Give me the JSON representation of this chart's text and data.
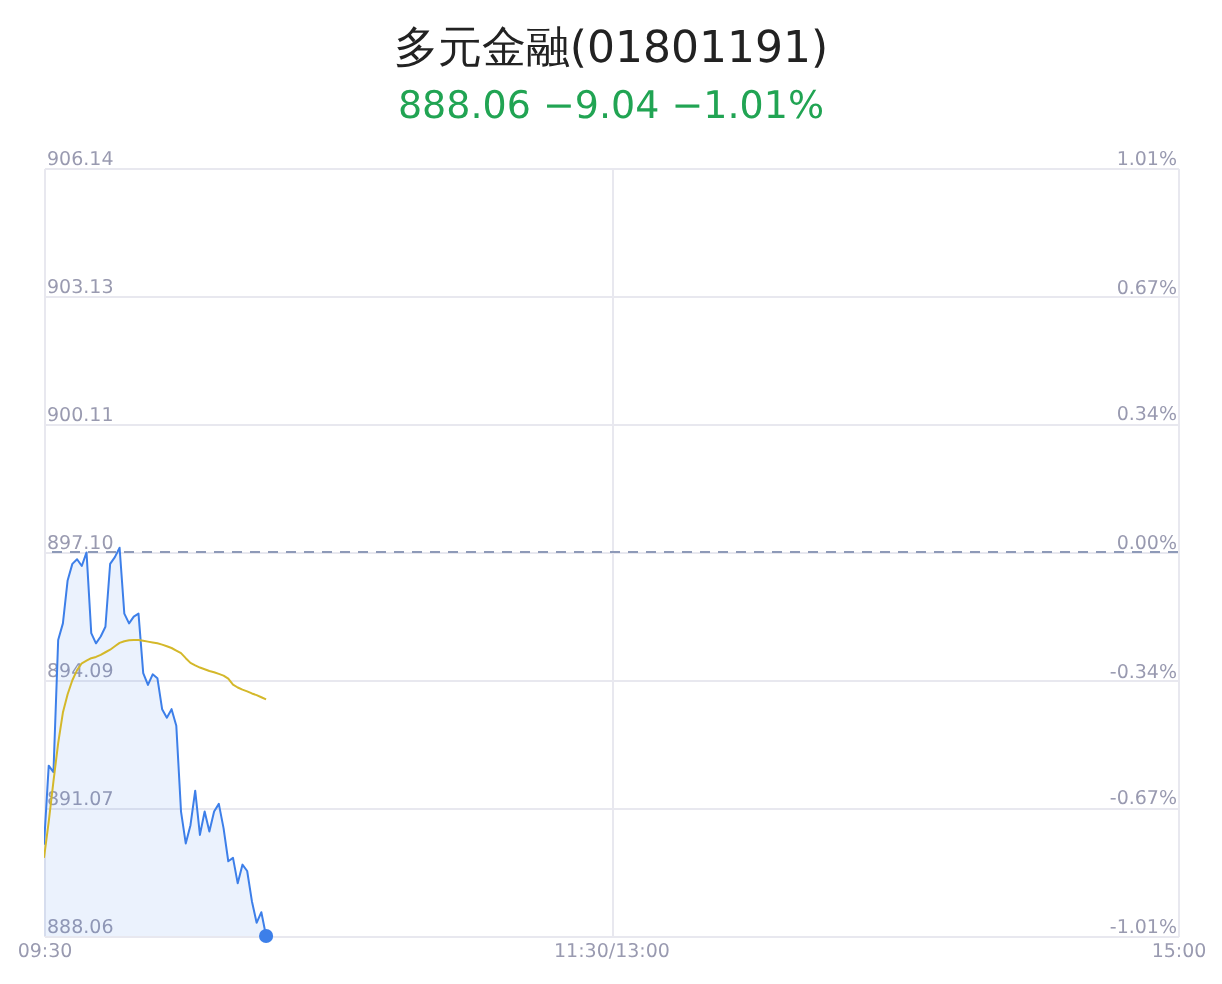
{
  "chart_data": {
    "type": "area",
    "title": "多元金融(01801191)",
    "subtitle": "888.06 −9.04 −1.01%",
    "categories": [
      "09:30",
      null,
      null,
      null,
      null,
      null,
      null,
      null,
      null,
      null,
      null,
      null,
      null,
      null,
      null,
      null,
      null,
      null,
      null,
      null,
      null,
      null,
      null,
      null,
      null,
      null,
      null,
      null,
      null,
      null,
      null,
      null,
      null,
      null,
      null,
      null,
      null,
      null,
      null,
      null,
      null,
      null,
      null,
      null,
      null,
      null,
      null,
      null,
      null,
      null,
      null,
      null,
      null,
      null,
      null,
      null,
      null,
      null,
      null,
      null,
      null,
      null,
      null,
      null,
      null,
      null,
      null,
      null,
      null,
      null,
      null,
      null,
      null,
      null,
      null,
      null,
      null,
      null,
      null,
      null,
      null,
      null,
      null,
      null,
      null,
      null,
      null,
      null,
      null,
      null,
      null,
      null,
      null,
      null,
      null,
      null,
      null,
      null,
      null,
      null,
      null,
      null,
      null,
      null,
      null,
      null,
      null,
      null,
      null,
      null,
      null,
      null,
      null,
      null,
      null,
      null,
      null,
      null,
      null,
      null,
      "11:30/13:00",
      null,
      null,
      null,
      null,
      null,
      null,
      null,
      null,
      null,
      null,
      null,
      null,
      null,
      null,
      null,
      null,
      null,
      null,
      null,
      null,
      null,
      null,
      null,
      null,
      null,
      null,
      null,
      null,
      null,
      null,
      null,
      null,
      null,
      null,
      null,
      null,
      null,
      null,
      null,
      null,
      null,
      null,
      null,
      null,
      null,
      null,
      null,
      null,
      null,
      null,
      null,
      null,
      null,
      null,
      null,
      null,
      null,
      null,
      null,
      null,
      null,
      null,
      null,
      null,
      null,
      null,
      null,
      null,
      null,
      null,
      null,
      null,
      null,
      null,
      null,
      null,
      null,
      null,
      null,
      null,
      null,
      null,
      null,
      null,
      null,
      null,
      null,
      null,
      null,
      null,
      null,
      null,
      null,
      null,
      null,
      null,
      null,
      null,
      null,
      null,
      null,
      null,
      null,
      null,
      null,
      null,
      null,
      null,
      null,
      null,
      null,
      null,
      null,
      null,
      null,
      null,
      null,
      null,
      null,
      "15:00"
    ],
    "ylim": [
      888.06,
      906.14
    ],
    "yticks": [
      888.06,
      891.07,
      894.09,
      {
        "value": 897.1,
        "label": "897.10"
      },
      900.11,
      903.13,
      906.14
    ],
    "y2lim": [
      -1.01,
      1.01
    ],
    "y2ticks": [
      {
        "value": -1.01,
        "label": "-1.01%"
      },
      {
        "value": -0.67,
        "label": "-0.67%"
      },
      {
        "value": -0.34,
        "label": "-0.34%"
      },
      {
        "value": 0,
        "label": "0.00%"
      },
      {
        "value": 0.34,
        "label": "0.34%"
      },
      {
        "value": 0.67,
        "label": "0.67%"
      },
      {
        "value": 1.01,
        "label": "1.01%"
      }
    ],
    "grid": true,
    "ref_lines": [
      {
        "axis": "y2",
        "value": 0,
        "color": "#8e9ab8",
        "line_style": "dashed"
      }
    ],
    "series": [
      {
        "color": "#3d7fe9",
        "values": [
          890.21,
          892.07,
          891.92,
          895.03,
          895.42,
          896.43,
          896.82,
          896.93,
          896.77,
          897.09,
          895.19,
          894.95,
          895.11,
          895.34,
          896.82,
          896.98,
          897.2,
          895.65,
          895.42,
          895.58,
          895.65,
          894.25,
          893.97,
          894.22,
          894.13,
          893.4,
          893.2,
          893.4,
          893.01,
          890.99,
          890.24,
          890.67,
          891.48,
          890.44,
          890.99,
          890.52,
          890.99,
          891.17,
          890.6,
          889.82,
          889.9,
          889.3,
          889.74,
          889.59,
          888.88,
          888.37,
          888.62,
          888.06,
          null,
          null,
          null,
          null,
          null,
          null,
          null,
          null,
          null,
          null,
          null,
          null,
          null,
          null,
          null,
          null,
          null,
          null,
          null,
          null,
          null,
          null,
          null,
          null,
          null,
          null,
          null,
          null,
          null,
          null,
          null,
          null,
          null,
          null,
          null,
          null,
          null,
          null,
          null,
          null,
          null,
          null,
          null,
          null,
          null,
          null,
          null,
          null,
          null,
          null,
          null,
          null,
          null,
          null,
          null,
          null,
          null,
          null,
          null,
          null,
          null,
          null,
          null,
          null,
          null,
          null,
          null,
          null,
          null,
          null,
          null,
          null,
          null,
          null,
          null,
          null,
          null,
          null,
          null,
          null,
          null,
          null,
          null,
          null,
          null,
          null,
          null,
          null,
          null,
          null,
          null,
          null,
          null,
          null,
          null,
          null,
          null,
          null,
          null,
          null,
          null,
          null,
          null,
          null,
          null,
          null,
          null,
          null,
          null,
          null,
          null,
          null,
          null,
          null,
          null,
          null,
          null,
          null,
          null,
          null,
          null,
          null,
          null,
          null,
          null,
          null,
          null,
          null,
          null,
          null,
          null,
          null,
          null,
          null,
          null,
          null,
          null,
          null,
          null,
          null,
          null,
          null,
          null,
          null,
          null,
          null,
          null,
          null,
          null,
          null,
          null,
          null,
          null,
          null,
          null,
          null,
          null,
          null,
          null,
          null,
          null,
          null,
          null,
          null,
          null,
          null,
          null,
          null,
          null,
          null,
          null,
          null,
          null,
          null,
          null,
          null,
          null,
          null,
          null,
          null,
          null,
          null,
          null,
          null,
          null,
          null,
          null,
          null,
          null,
          null,
          null,
          null,
          null
        ]
      },
      {
        "type": "line",
        "color": "#d4b82a",
        "values": [
          889.9,
          890.75,
          891.7,
          892.6,
          893.32,
          893.75,
          894.08,
          894.32,
          894.48,
          894.54,
          894.6,
          894.63,
          894.68,
          894.74,
          894.8,
          894.88,
          894.96,
          895,
          895.02,
          895.03,
          895.03,
          895.01,
          894.99,
          894.97,
          894.95,
          894.92,
          894.88,
          894.84,
          894.78,
          894.72,
          894.6,
          894.49,
          894.43,
          894.38,
          894.34,
          894.3,
          894.27,
          894.23,
          894.19,
          894.12,
          893.98,
          893.91,
          893.86,
          893.82,
          893.77,
          893.73,
          893.68,
          893.63,
          null,
          null,
          null,
          null,
          null,
          null,
          null,
          null,
          null,
          null,
          null,
          null,
          null,
          null,
          null,
          null,
          null,
          null,
          null,
          null,
          null,
          null,
          null,
          null,
          null,
          null,
          null,
          null,
          null,
          null,
          null,
          null,
          null,
          null,
          null,
          null,
          null,
          null,
          null,
          null,
          null,
          null,
          null,
          null,
          null,
          null,
          null,
          null,
          null,
          null,
          null,
          null,
          null,
          null,
          null,
          null,
          null,
          null,
          null,
          null,
          null,
          null,
          null,
          null,
          null,
          null,
          null,
          null,
          null,
          null,
          null,
          null,
          null,
          null,
          null,
          null,
          null,
          null,
          null,
          null,
          null,
          null,
          null,
          null,
          null,
          null,
          null,
          null,
          null,
          null,
          null,
          null,
          null,
          null,
          null,
          null,
          null,
          null,
          null,
          null,
          null,
          null,
          null,
          null,
          null,
          null,
          null,
          null,
          null,
          null,
          null,
          null,
          null,
          null,
          null,
          null,
          null,
          null,
          null,
          null,
          null,
          null,
          null,
          null,
          null,
          null,
          null,
          null,
          null,
          null,
          null,
          null,
          null,
          null,
          null,
          null,
          null,
          null,
          null,
          null,
          null,
          null,
          null,
          null,
          null,
          null,
          null,
          null,
          null,
          null,
          null,
          null,
          null,
          null,
          null,
          null,
          null,
          null,
          null,
          null,
          null,
          null,
          null,
          null,
          null,
          null,
          null,
          null,
          null,
          null,
          null,
          null,
          null,
          null,
          null,
          null,
          null,
          null,
          null,
          null,
          null,
          null,
          null,
          null,
          null,
          null,
          null,
          null,
          null,
          null,
          null,
          null,
          null
        ]
      },
      {
        "type": "scatter",
        "color": "#3d7fe9",
        "marker": "circle",
        "values": [
          null,
          null,
          null,
          null,
          null,
          null,
          null,
          null,
          null,
          null,
          null,
          null,
          null,
          null,
          null,
          null,
          null,
          null,
          null,
          null,
          null,
          null,
          null,
          null,
          null,
          null,
          null,
          null,
          null,
          null,
          null,
          null,
          null,
          null,
          null,
          null,
          null,
          null,
          null,
          null,
          null,
          null,
          null,
          null,
          null,
          null,
          null,
          888.06,
          null,
          null,
          null,
          null,
          null,
          null,
          null,
          null,
          null,
          null,
          null,
          null,
          null,
          null,
          null,
          null,
          null,
          null,
          null,
          null,
          null,
          null,
          null,
          null,
          null,
          null,
          null,
          null,
          null,
          null,
          null,
          null,
          null,
          null,
          null,
          null,
          null,
          null,
          null,
          null,
          null,
          null,
          null,
          null,
          null,
          null,
          null,
          null,
          null,
          null,
          null,
          null,
          null,
          null,
          null,
          null,
          null,
          null,
          null,
          null,
          null,
          null,
          null,
          null,
          null,
          null,
          null,
          null,
          null,
          null,
          null,
          null,
          null,
          null,
          null,
          null,
          null,
          null,
          null,
          null,
          null,
          null,
          null,
          null,
          null,
          null,
          null,
          null,
          null,
          null,
          null,
          null,
          null,
          null,
          null,
          null,
          null,
          null,
          null,
          null,
          null,
          null,
          null,
          null,
          null,
          null,
          null,
          null,
          null,
          null,
          null,
          null,
          null,
          null,
          null,
          null,
          null,
          null,
          null,
          null,
          null,
          null,
          null,
          null,
          null,
          null,
          null,
          null,
          null,
          null,
          null,
          null,
          null,
          null,
          null,
          null,
          null,
          null,
          null,
          null,
          null,
          null,
          null,
          null,
          null,
          null,
          null,
          null,
          null,
          null,
          null,
          null,
          null,
          null,
          null,
          null,
          null,
          null,
          null,
          null,
          null,
          null,
          null,
          null,
          null,
          null,
          null,
          null,
          null,
          null,
          null,
          null,
          null,
          null,
          null,
          null,
          null,
          null,
          null,
          null,
          null,
          null,
          null,
          null,
          null,
          null,
          null,
          null,
          null,
          null,
          null,
          null,
          null
        ]
      }
    ]
  }
}
